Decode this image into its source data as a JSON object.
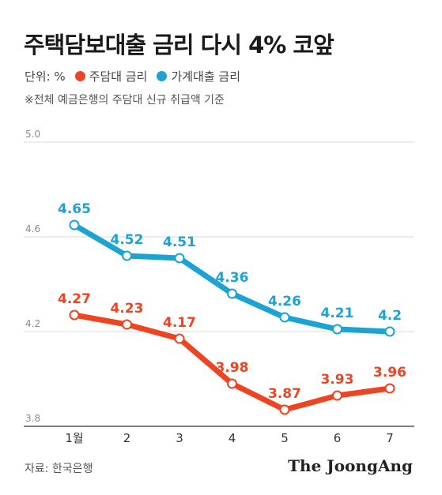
{
  "title": "주택담보대출 금리 다시 4% 코앞",
  "legend": {
    "unit": "단위: %",
    "items": [
      {
        "label": "주담대 금리",
        "color": "#ee4422"
      },
      {
        "label": "가계대출 금리",
        "color": "#1ba3d4"
      }
    ]
  },
  "note": "※전체 예금은행의 주담대 신규 취급액 기준",
  "source": "자료: 한국은행",
  "brand": "The JoongAng",
  "chart_data": {
    "type": "line",
    "categories": [
      "1월",
      "2",
      "3",
      "4",
      "5",
      "6",
      "7"
    ],
    "series": [
      {
        "name": "가계대출 금리",
        "color": "#1ba3d4",
        "values": [
          4.65,
          4.52,
          4.51,
          4.36,
          4.26,
          4.21,
          4.2
        ],
        "labels": [
          "4.65",
          "4.52",
          "4.51",
          "4.36",
          "4.26",
          "4.21",
          "4.2"
        ]
      },
      {
        "name": "주담대 금리",
        "color": "#ee4422",
        "values": [
          4.27,
          4.23,
          4.17,
          3.98,
          3.87,
          3.93,
          3.96
        ],
        "labels": [
          "4.27",
          "4.23",
          "4.17",
          "3.98",
          "3.87",
          "3.93",
          "3.96"
        ]
      }
    ],
    "ylim": [
      3.8,
      5.0
    ],
    "yticks": [
      "3.8",
      "4.2",
      "4.6",
      "5.0"
    ],
    "grid": true
  }
}
